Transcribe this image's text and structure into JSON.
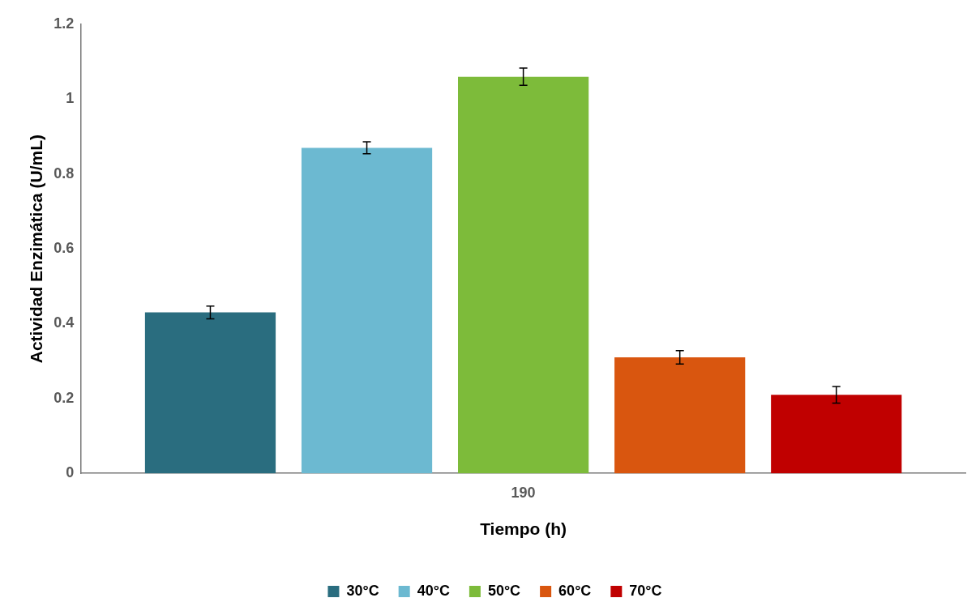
{
  "chart_data": {
    "type": "bar",
    "xlabel": "Tiempo (h)",
    "ylabel": "Actividad Enzimática (U/mL)",
    "categories": [
      "190"
    ],
    "series": [
      {
        "name": "30°C",
        "color": "#2a6d7f",
        "values": [
          0.43
        ],
        "errors": [
          0.017
        ]
      },
      {
        "name": "40°C",
        "color": "#6cb9d1",
        "values": [
          0.87
        ],
        "errors": [
          0.016
        ]
      },
      {
        "name": "50°C",
        "color": "#7dbb3a",
        "values": [
          1.06
        ],
        "errors": [
          0.023
        ]
      },
      {
        "name": "60°C",
        "color": "#d9560f",
        "values": [
          0.31
        ],
        "errors": [
          0.018
        ]
      },
      {
        "name": "70°C",
        "color": "#c00000",
        "values": [
          0.21
        ],
        "errors": [
          0.022
        ]
      }
    ],
    "ylim": [
      0,
      1.2
    ],
    "yticks": [
      0,
      0.2,
      0.4,
      0.6,
      0.8,
      1,
      1.2
    ],
    "grid": false,
    "legend": "bottom"
  }
}
